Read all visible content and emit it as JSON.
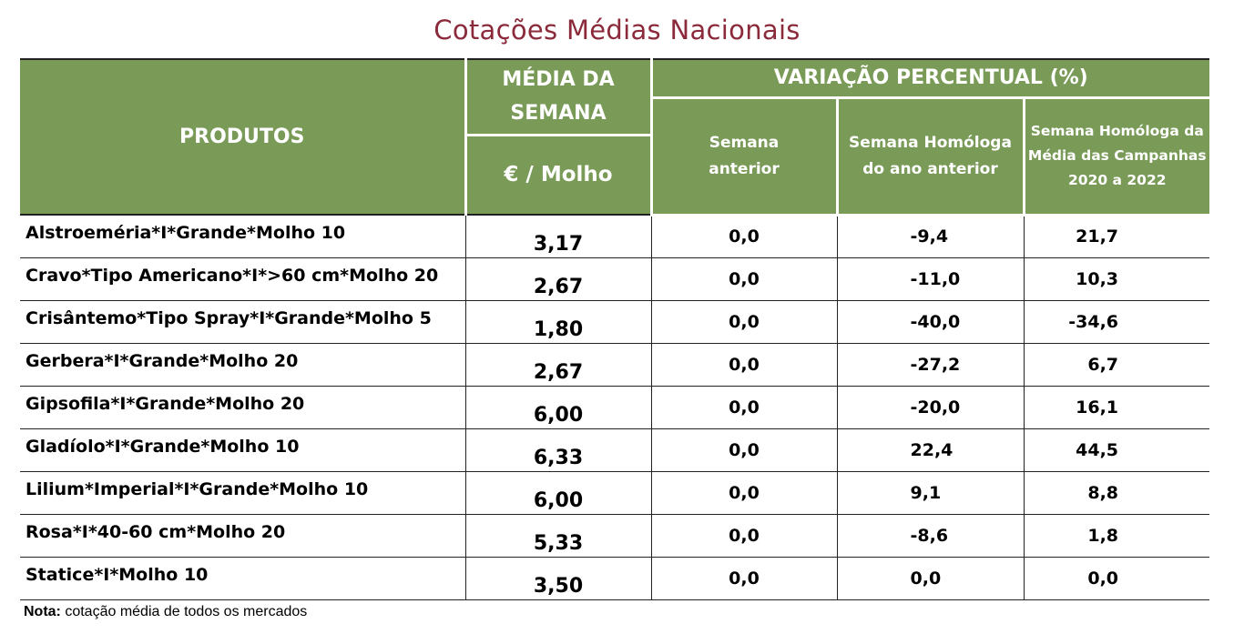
{
  "title": "Cotações Médias Nacionais",
  "header": {
    "produtos": "PRODUTOS",
    "media_line1": "MÉDIA DA",
    "media_line2": "SEMANA",
    "unit": "€ / Molho",
    "variacao": "VARIAÇÃO PERCENTUAL (%)",
    "col1_l1": "Semana",
    "col1_l2": "anterior",
    "col2_l1": "Semana Homóloga",
    "col2_l2": "do ano anterior",
    "col3_l1": "Semana Homóloga da",
    "col3_l2": "Média das Campanhas",
    "col3_l3": "2020 a 2022"
  },
  "rows": [
    {
      "produto": "Alstroeméria*I*Grande*Molho 10",
      "media": "3,17",
      "anterior": "0,0",
      "homologa": "-9,4",
      "campanhas": "21,7"
    },
    {
      "produto": "Cravo*Tipo Americano*I*>60 cm*Molho 20",
      "media": "2,67",
      "anterior": "0,0",
      "homologa": "-11,0",
      "campanhas": "10,3"
    },
    {
      "produto": "Crisântemo*Tipo Spray*I*Grande*Molho 5",
      "media": "1,80",
      "anterior": "0,0",
      "homologa": "-40,0",
      "campanhas": "-34,6"
    },
    {
      "produto": "Gerbera*I*Grande*Molho 20",
      "media": "2,67",
      "anterior": "0,0",
      "homologa": "-27,2",
      "campanhas": "6,7"
    },
    {
      "produto": "Gipsofila*I*Grande*Molho 20",
      "media": "6,00",
      "anterior": "0,0",
      "homologa": "-20,0",
      "campanhas": "16,1"
    },
    {
      "produto": "Gladíolo*I*Grande*Molho 10",
      "media": "6,33",
      "anterior": "0,0",
      "homologa": "22,4",
      "campanhas": "44,5"
    },
    {
      "produto": "Lilium*Imperial*I*Grande*Molho 10",
      "media": "6,00",
      "anterior": "0,0",
      "homologa": "9,1",
      "campanhas": "8,8"
    },
    {
      "produto": "Rosa*I*40-60 cm*Molho 20",
      "media": "5,33",
      "anterior": "0,0",
      "homologa": "-8,6",
      "campanhas": "1,8"
    },
    {
      "produto": "Statice*I*Molho 10",
      "media": "3,50",
      "anterior": "0,0",
      "homologa": "0,0",
      "campanhas": "0,0"
    }
  ],
  "note": {
    "label": "Nota:",
    "text": " cotação média de todos os mercados"
  },
  "colors": {
    "header_bg": "#7a9a58",
    "title": "#8b2a3a"
  }
}
